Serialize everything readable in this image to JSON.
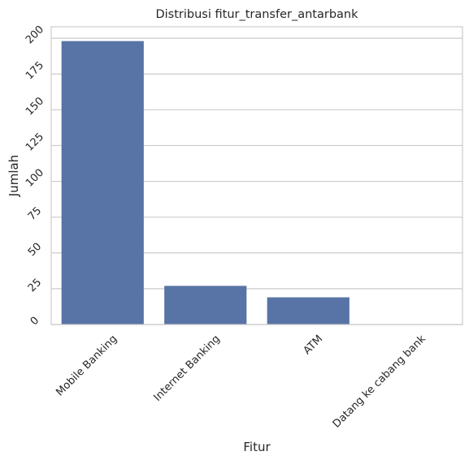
{
  "chart_data": {
    "type": "bar",
    "title": "Distribusi fitur_transfer_antarbank",
    "xlabel": "Fitur",
    "ylabel": "Jumlah",
    "categories": [
      "Mobile Banking",
      "Internet Banking",
      "ATM",
      "Datang ke cabang bank"
    ],
    "values": [
      198,
      27,
      19,
      0
    ],
    "ylim": [
      0,
      208
    ],
    "yticks": [
      "0",
      "25",
      "50",
      "75",
      "100",
      "125",
      "150",
      "175",
      "200"
    ],
    "grid": "horizontal",
    "bar_color": "#5874a6",
    "grid_color": "#cccccc",
    "background": "#ffffff"
  }
}
